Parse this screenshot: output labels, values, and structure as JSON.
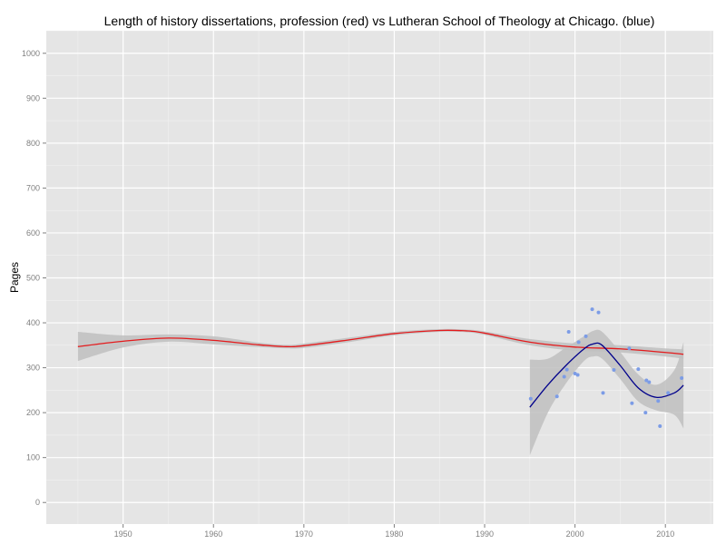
{
  "chart_data": {
    "type": "scatter",
    "title": "Length of history dissertations, profession (red) vs Lutheran School of Theology at Chicago. (blue)",
    "xlabel": "",
    "ylabel": "Pages",
    "xlim": [
      1941.5,
      2015.3
    ],
    "ylim": [
      -48,
      1050
    ],
    "x_ticks": [
      1950,
      1960,
      1970,
      1980,
      1990,
      2000,
      2010
    ],
    "y_ticks": [
      0,
      100,
      200,
      300,
      400,
      500,
      600,
      700,
      800,
      900,
      1000
    ],
    "grid": true,
    "legend": "none",
    "colors": {
      "panel": "#e5e5e5",
      "grid_major": "#ffffff",
      "grid_minor": "#f2f2f2",
      "profession": "#e41a1c",
      "lstc": "#00008b",
      "points": "#7c9ce6",
      "ribbon": "#bfbfbf"
    },
    "series": [
      {
        "kind": "smooth",
        "color": "#e41a1c",
        "x": [
          1945,
          1950,
          1955,
          1960,
          1965,
          1968,
          1970,
          1975,
          1980,
          1985,
          1988,
          1990,
          1995,
          2000,
          2005,
          2010,
          2012
        ],
        "y": [
          347,
          359,
          366,
          361,
          351,
          347,
          349,
          362,
          376,
          383,
          382,
          377,
          357,
          346,
          342,
          334,
          330
        ],
        "ci_low": [
          315,
          345,
          358,
          352,
          346,
          343,
          344,
          357,
          372,
          380,
          379,
          373,
          350,
          338,
          334,
          325,
          320
        ],
        "ci_high": [
          380,
          372,
          374,
          370,
          356,
          351,
          354,
          367,
          380,
          386,
          385,
          381,
          364,
          354,
          350,
          343,
          341
        ]
      },
      {
        "kind": "smooth",
        "color": "#00008b",
        "x": [
          1995,
          1997,
          1999,
          2001,
          2002,
          2003,
          2005,
          2007,
          2009,
          2011,
          2012
        ],
        "y": [
          212,
          262,
          305,
          342,
          353,
          350,
          305,
          255,
          234,
          244,
          261
        ],
        "ci_low": [
          105,
          200,
          265,
          315,
          325,
          320,
          275,
          225,
          205,
          195,
          165
        ],
        "ci_high": [
          318,
          320,
          345,
          370,
          382,
          380,
          335,
          285,
          262,
          295,
          357
        ]
      },
      {
        "kind": "points",
        "color": "#7c9ce6",
        "x": [
          1995.1,
          1998.0,
          1998.8,
          1999.1,
          1999.3,
          2000.0,
          2000.3,
          2000.4,
          2001.2,
          2001.9,
          2002.6,
          2003.1,
          2004.3,
          2006.0,
          2006.3,
          2007.0,
          2007.8,
          2007.9,
          2008.2,
          2009.2,
          2009.4,
          2010.3,
          2011.8
        ],
        "y": [
          231,
          236,
          280,
          296,
          380,
          287,
          284,
          357,
          370,
          430,
          423,
          244,
          295,
          343,
          221,
          297,
          200,
          272,
          268,
          226,
          170,
          244,
          277
        ]
      }
    ]
  }
}
